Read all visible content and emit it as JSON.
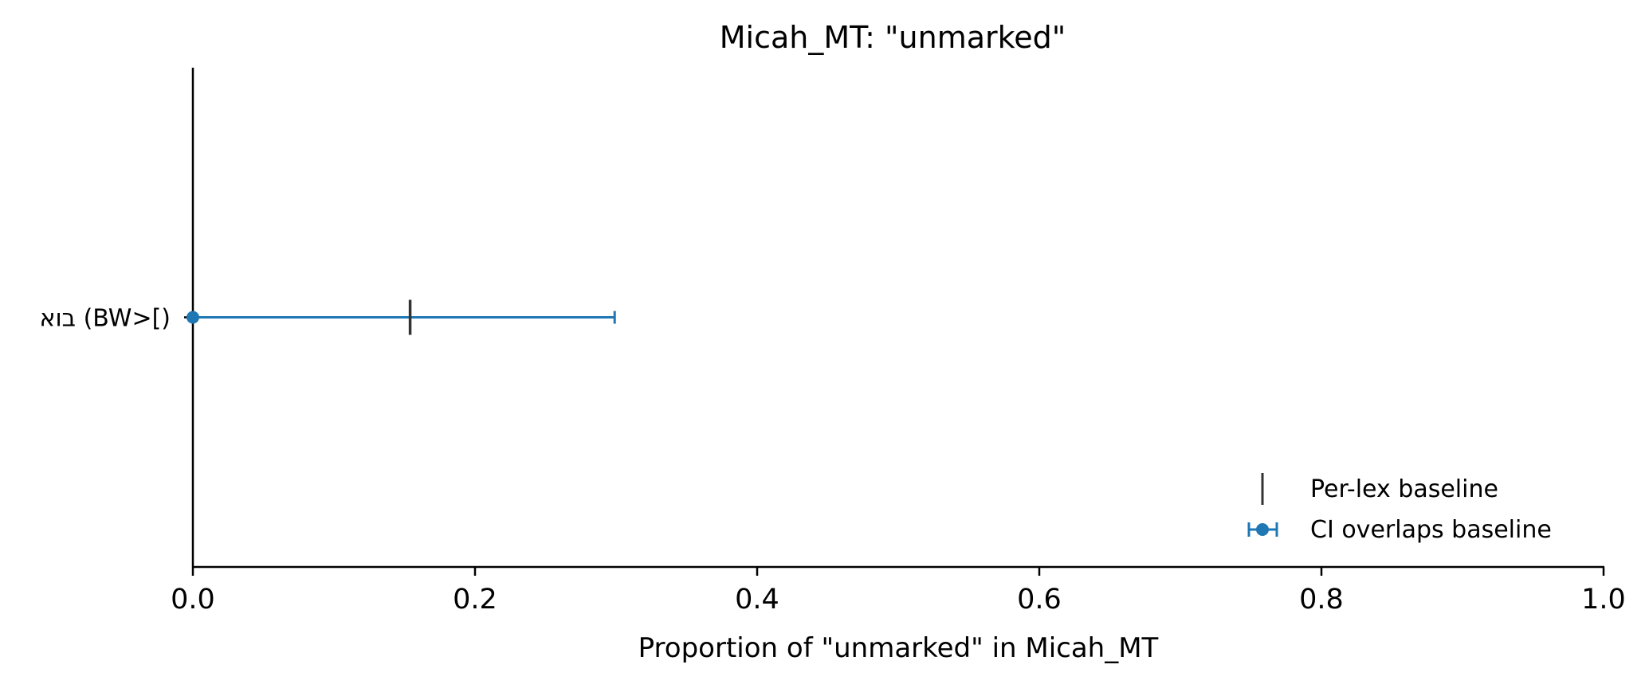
{
  "chart_data": {
    "type": "errorbar",
    "title": "Micah_MT: \"unmarked\"",
    "xlabel": "Proportion of \"unmarked\" in Micah_MT",
    "ylabel": "",
    "xlim": [
      0.0,
      1.0
    ],
    "xticks": [
      "0.0",
      "0.2",
      "0.4",
      "0.6",
      "0.8",
      "1.0"
    ],
    "categories": [
      "בוא (BW>[)"
    ],
    "points": [
      {
        "category": "בוא (BW>[)",
        "value": 0.0,
        "ci_low": 0.0,
        "ci_high": 0.299,
        "baseline": 0.154
      }
    ],
    "legend": {
      "placement": "lower-right",
      "entries": [
        {
          "label": "Per-lex baseline",
          "marker": "vertical-line"
        },
        {
          "label": "CI overlaps baseline",
          "marker": "errorbar-point"
        }
      ]
    },
    "grid": false,
    "colors": {
      "ci": "#1f77b4",
      "baseline": "#333333",
      "axis": "#000000"
    }
  }
}
